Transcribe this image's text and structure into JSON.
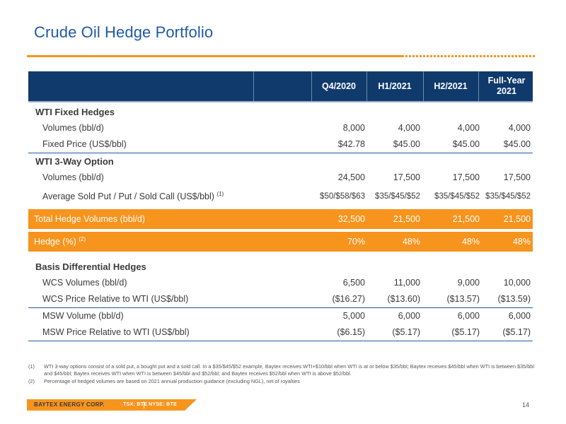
{
  "slide": {
    "title": "Crude Oil Hedge Portfolio",
    "page_number": "14"
  },
  "table": {
    "headers": [
      "Q4/2020",
      "H1/2021",
      "H2/2021",
      "Full-Year 2021"
    ],
    "sections": [
      {
        "title": "WTI Fixed Hedges",
        "rows": [
          {
            "label": "Volumes (bbl/d)",
            "values": [
              "8,000",
              "4,000",
              "4,000",
              "4,000"
            ]
          },
          {
            "label": "Fixed Price (US$/bbl)",
            "values": [
              "$42.78",
              "$45.00",
              "$45.00",
              "$45.00"
            ]
          }
        ]
      },
      {
        "title": "WTI 3-Way Option",
        "rows": [
          {
            "label": "Volumes (bbl/d)",
            "values": [
              "24,500",
              "17,500",
              "17,500",
              "17,500"
            ]
          },
          {
            "label": "Average Sold Put / Put / Sold Call (US$/bbl)",
            "sup": "(1)",
            "values": [
              "$50/$58/$63",
              "$35/$45/$52",
              "$35/$45/$52",
              "$35/$45/$52"
            ]
          }
        ]
      }
    ],
    "totals": [
      {
        "label": "Total Hedge Volumes (bbl/d)",
        "values": [
          "32,500",
          "21,500",
          "21,500",
          "21,500"
        ]
      },
      {
        "label": "Hedge (%)",
        "sup": "(2)",
        "values": [
          "70%",
          "48%",
          "48%",
          "48%"
        ]
      }
    ],
    "basis": {
      "title": "Basis Differential Hedges",
      "rows": [
        {
          "label": "WCS Volumes (bbl/d)",
          "values": [
            "6,500",
            "11,000",
            "9,000",
            "10,000"
          ]
        },
        {
          "label": "WCS Price Relative to WTI (US$/bbl)",
          "values": [
            "($16.27)",
            "($13.60)",
            "($13.57)",
            "($13.59)"
          ]
        },
        {
          "label": "MSW Volume (bbl/d)",
          "values": [
            "5,000",
            "6,000",
            "6,000",
            "6,000"
          ]
        },
        {
          "label": "MSW Price Relative to WTI (US$/bbl)",
          "values": [
            "($6.15)",
            "($5.17)",
            "($5.17)",
            "($5.17)"
          ]
        }
      ]
    }
  },
  "footnotes": [
    {
      "num": "(1)",
      "text": "WTI 3-way options consist of a sold put, a bought put and a sold call. In a $35/$45/$52 example, Baytex receives WTI+$10/bbl when WTI is at or below $35/bbl; Baytex receives $45/bbl when WTI is between $35/bbl and $45/bbl; Baytex receives WTI when WTI is between $45/bbl and $52/bbl; and Baytex receives $52/bbl when WTI is above $52/bbl."
    },
    {
      "num": "(2)",
      "text": "Percentage of hedged volumes are based on 2021 annual production guidance (excluding NGL), net of royalties"
    }
  ],
  "footer": {
    "company": "BAYTEX ENERGY CORP.",
    "tsx": "TSX: BTE",
    "nyse": "NYSE: BTE"
  },
  "colors": {
    "navy": "#0f3a6b",
    "orange": "#f7941d",
    "title_blue": "#1f5aa6"
  }
}
